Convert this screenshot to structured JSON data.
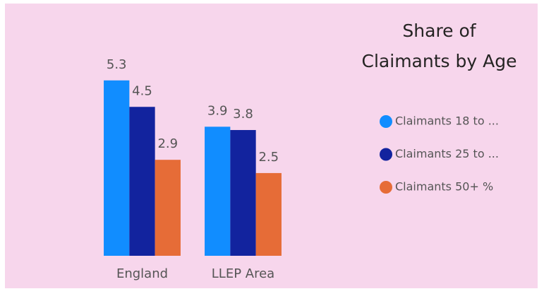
{
  "chart_data": {
    "type": "bar",
    "title": "Share of Claimants by Age",
    "categories": [
      "England",
      "LLEP Area"
    ],
    "series": [
      {
        "name": "Claimants 18 to ...",
        "color": "#118dff",
        "values": [
          5.3,
          3.9
        ]
      },
      {
        "name": "Claimants 25 to ...",
        "color": "#12239e",
        "values": [
          4.5,
          3.8
        ]
      },
      {
        "name": "Claimants 50+ %",
        "color": "#e66c37",
        "values": [
          2.9,
          2.5
        ]
      }
    ],
    "ylim": [
      0,
      6
    ],
    "grid": false,
    "legend": "right"
  }
}
